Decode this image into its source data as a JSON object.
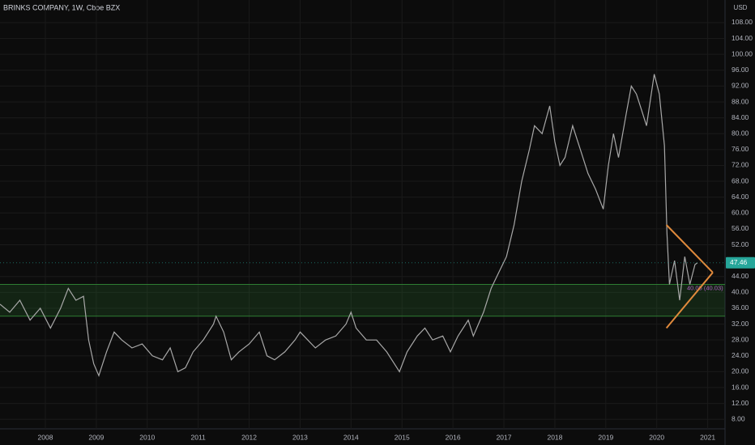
{
  "chart_data": {
    "type": "line",
    "title": "BRINKS COMPANY, 1W, Cboe BZX",
    "currency": "USD",
    "color": "#a8a8a8",
    "grid": true,
    "xlim": [
      2007.11,
      2021.34
    ],
    "ylim": [
      5.6,
      113.7
    ],
    "xticks": [
      2008,
      2009,
      2010,
      2011,
      2012,
      2013,
      2014,
      2015,
      2016,
      2017,
      2018,
      2019,
      2020,
      2021
    ],
    "yticks": [
      {
        "value": 8,
        "label": "8.00"
      },
      {
        "value": 12,
        "label": "12.00"
      },
      {
        "value": 16,
        "label": "16.00"
      },
      {
        "value": 20,
        "label": "20.00"
      },
      {
        "value": 24,
        "label": "24.00"
      },
      {
        "value": 28,
        "label": "28.00"
      },
      {
        "value": 32,
        "label": "32.00"
      },
      {
        "value": 36,
        "label": "36.00"
      },
      {
        "value": 40,
        "label": "40.00"
      },
      {
        "value": 44,
        "label": "44.00"
      },
      {
        "value": 52,
        "label": "52.00"
      },
      {
        "value": 56,
        "label": "56.00"
      },
      {
        "value": 60,
        "label": "60.00"
      },
      {
        "value": 64,
        "label": "64.00"
      },
      {
        "value": 68,
        "label": "68.00"
      },
      {
        "value": 72,
        "label": "72.00"
      },
      {
        "value": 76,
        "label": "76.00"
      },
      {
        "value": 80,
        "label": "80.00"
      },
      {
        "value": 84,
        "label": "84.00"
      },
      {
        "value": 88,
        "label": "88.00"
      },
      {
        "value": 92,
        "label": "92.00"
      },
      {
        "value": 96,
        "label": "96.00"
      },
      {
        "value": 100,
        "label": "100.00"
      },
      {
        "value": 104,
        "label": "104.00"
      },
      {
        "value": 108,
        "label": "108.00"
      }
    ],
    "x": [
      2007.11,
      2007.3,
      2007.5,
      2007.7,
      2007.9,
      2008.1,
      2008.3,
      2008.45,
      2008.6,
      2008.75,
      2008.85,
      2008.95,
      2009.05,
      2009.2,
      2009.35,
      2009.5,
      2009.7,
      2009.9,
      2010.1,
      2010.3,
      2010.45,
      2010.6,
      2010.75,
      2010.9,
      2011.1,
      2011.3,
      2011.35,
      2011.5,
      2011.65,
      2011.8,
      2012.0,
      2012.2,
      2012.35,
      2012.5,
      2012.7,
      2012.9,
      2013.0,
      2013.15,
      2013.3,
      2013.5,
      2013.7,
      2013.9,
      2014.0,
      2014.1,
      2014.3,
      2014.5,
      2014.7,
      2014.85,
      2014.95,
      2015.1,
      2015.3,
      2015.45,
      2015.6,
      2015.8,
      2015.95,
      2016.1,
      2016.3,
      2016.4,
      2016.5,
      2016.6,
      2016.75,
      2016.9,
      2017.05,
      2017.2,
      2017.35,
      2017.5,
      2017.6,
      2017.75,
      2017.9,
      2018.0,
      2018.1,
      2018.2,
      2018.35,
      2018.5,
      2018.65,
      2018.8,
      2018.95,
      2019.05,
      2019.15,
      2019.25,
      2019.4,
      2019.5,
      2019.6,
      2019.7,
      2019.8,
      2019.95,
      2020.05,
      2020.15,
      2020.2,
      2020.25,
      2020.35,
      2020.45,
      2020.55,
      2020.65,
      2020.75,
      2020.8
    ],
    "values": [
      37,
      35,
      38,
      33,
      36,
      31,
      36,
      41,
      38,
      39,
      28,
      22,
      19,
      25,
      30,
      28,
      26,
      27,
      24,
      23,
      26,
      20,
      21,
      25,
      28,
      32,
      34,
      30,
      23,
      25,
      27,
      30,
      24,
      23,
      25,
      28,
      30,
      28,
      26,
      28,
      29,
      32,
      35,
      31,
      28,
      28,
      25,
      22,
      20,
      25,
      29,
      31,
      28,
      29,
      25,
      29,
      33,
      29,
      32,
      35,
      41,
      45,
      49,
      57,
      68,
      76,
      82,
      80,
      87,
      78,
      72,
      74,
      82,
      76,
      70,
      66,
      61,
      72,
      80,
      74,
      85,
      92,
      90,
      86,
      82,
      95,
      90,
      77,
      55,
      42,
      48,
      38,
      49,
      42,
      47,
      47.46
    ],
    "last_price": 47.46,
    "zone": {
      "values": [
        34,
        42
      ],
      "color": "#2e7d32"
    },
    "level_label": "40.05 (40.03)",
    "trend_lines": [
      {
        "color": "#e08a3c",
        "x": [
          2020.19,
          2021.1
        ],
        "values": [
          57,
          45
        ]
      },
      {
        "color": "#e08a3c",
        "x": [
          2020.19,
          2021.1
        ],
        "values": [
          31,
          45
        ]
      }
    ]
  }
}
